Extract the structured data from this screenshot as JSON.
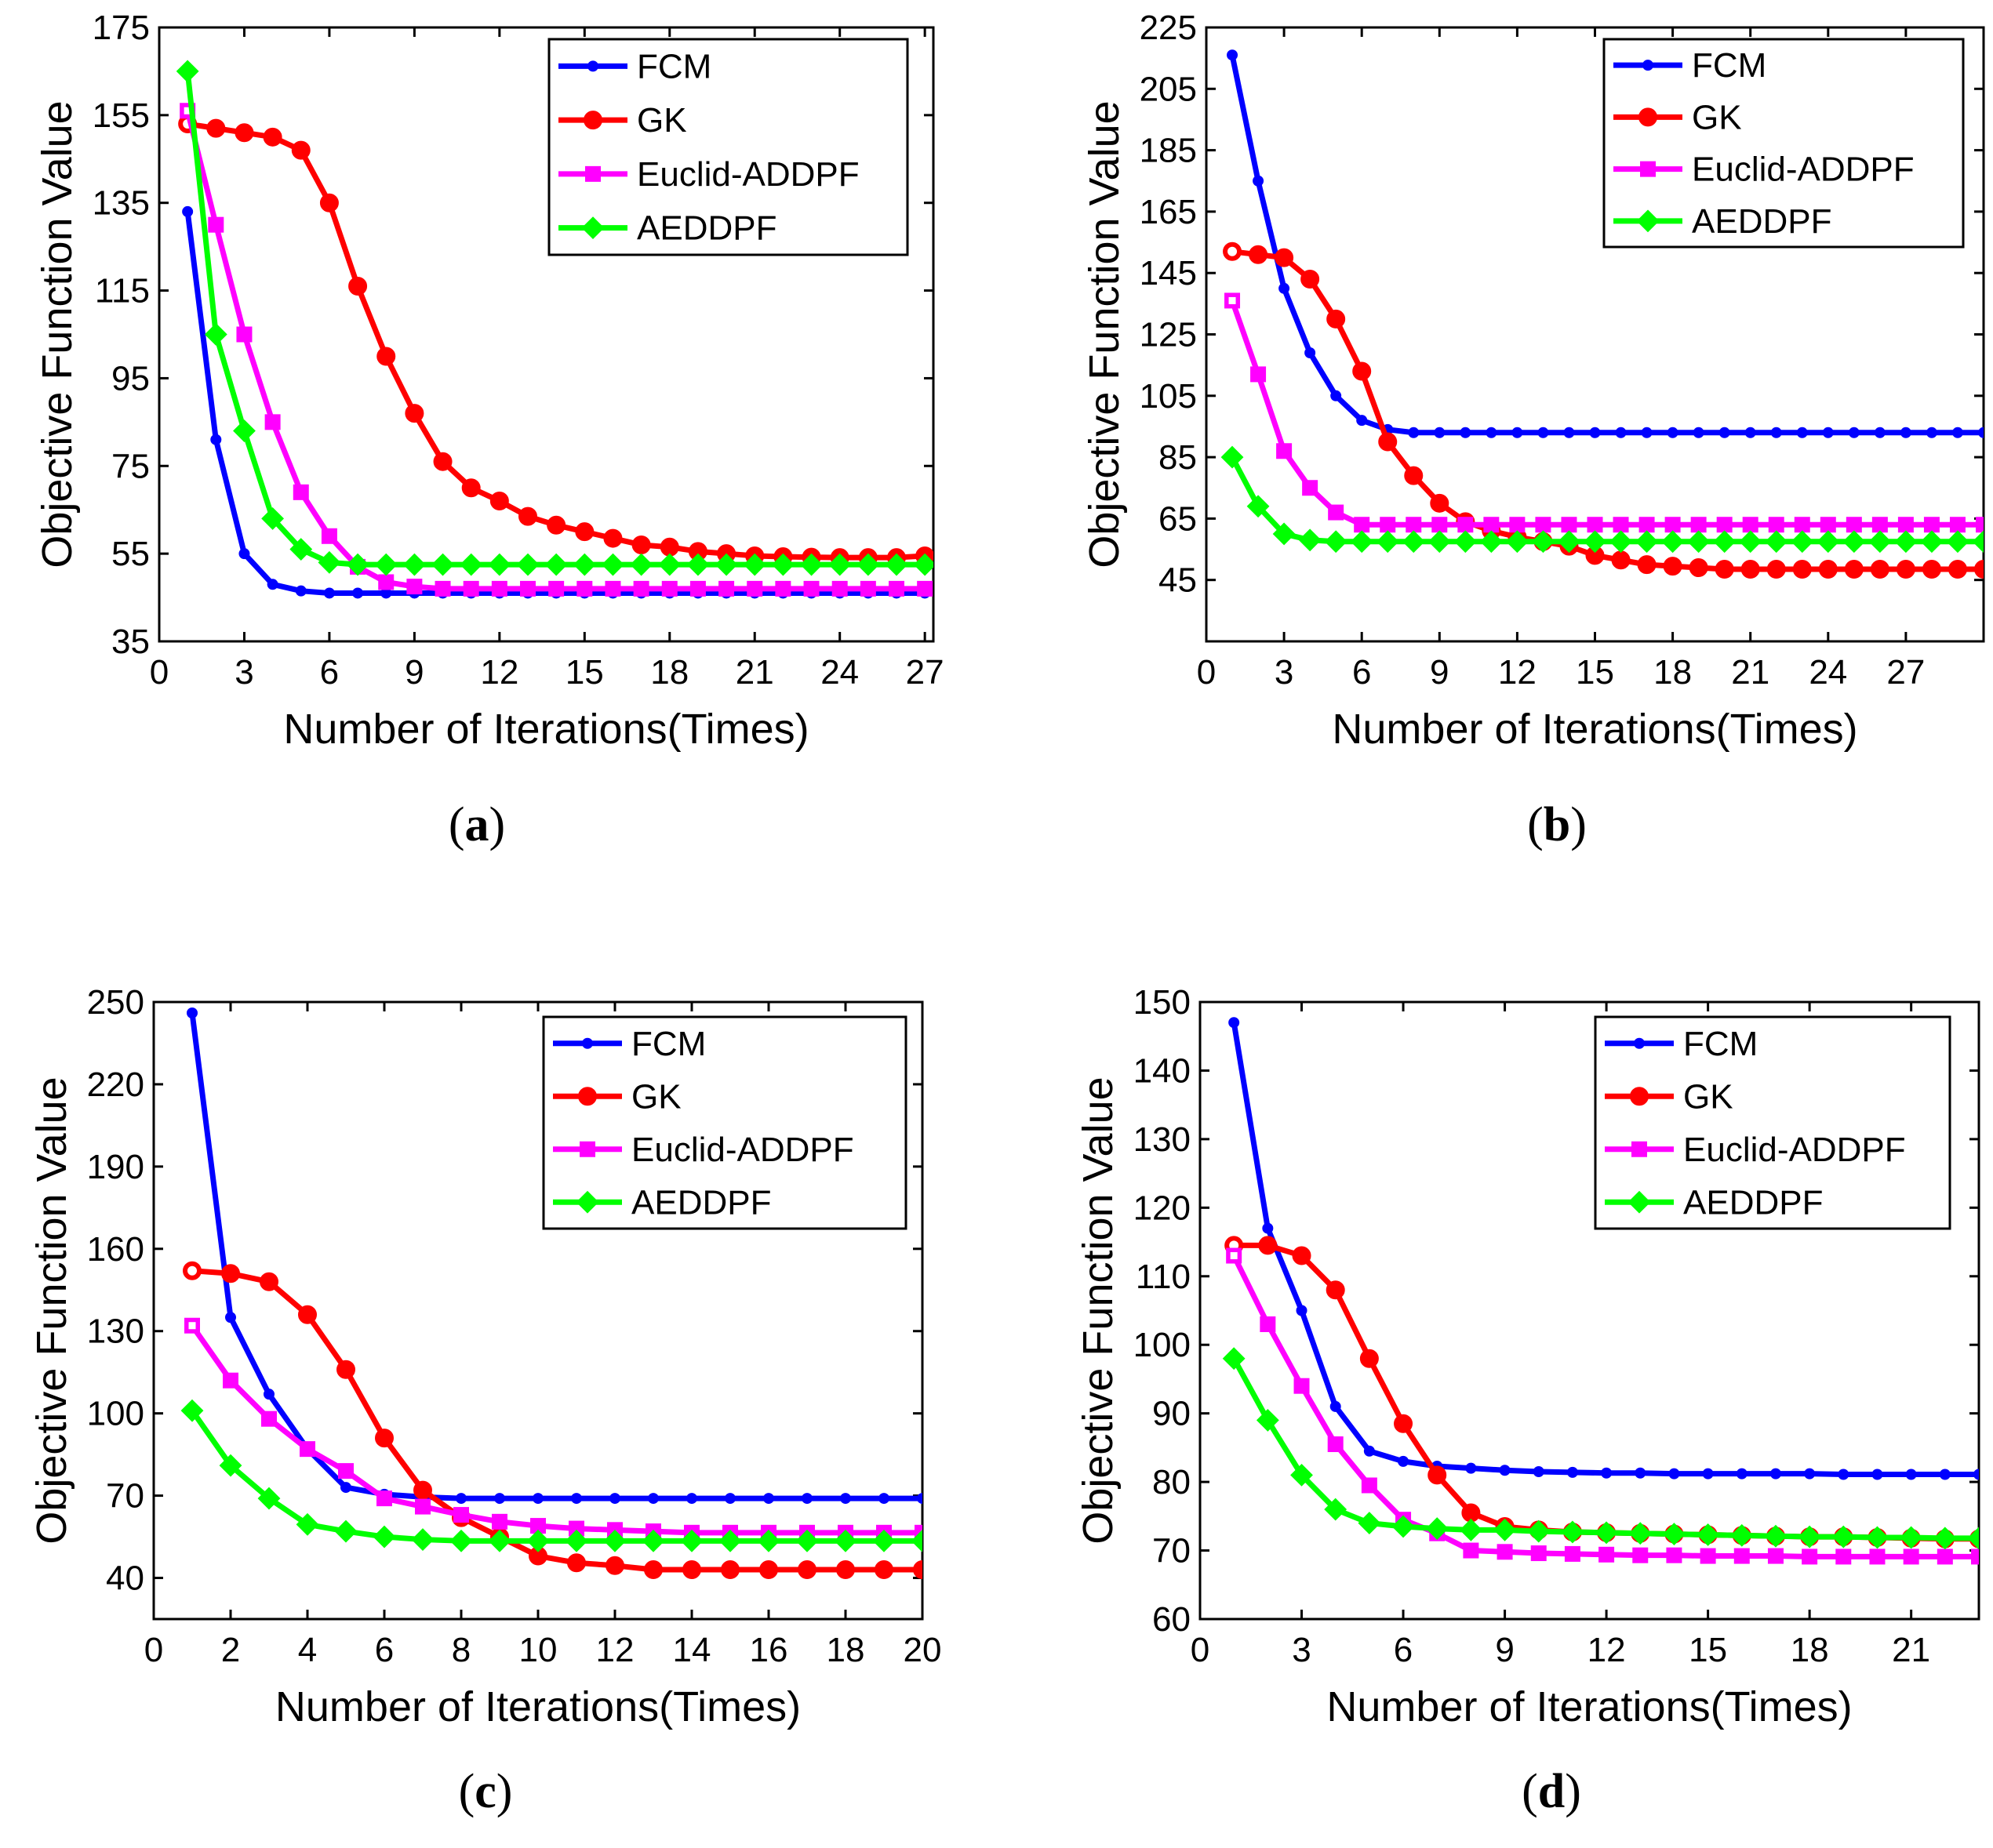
{
  "colors": {
    "FCM": "#0000ff",
    "GK": "#ff0000",
    "Euclid-ADDPF": "#ff00ff",
    "AEDDPF": "#00ff00"
  },
  "markers": {
    "FCM": "small-dot",
    "GK": "circle",
    "Euclid-ADDPF": "square",
    "AEDDPF": "diamond"
  },
  "chart_data": [
    {
      "type": "line",
      "caption": "a",
      "xlabel": "Number of Iterations(Times)",
      "ylabel": "Objective Function Value",
      "xlim": [
        0,
        27.3
      ],
      "ylim": [
        35,
        175
      ],
      "xticks": [
        0,
        3,
        6,
        9,
        12,
        15,
        18,
        21,
        24,
        27
      ],
      "yticks": [
        35,
        55,
        75,
        95,
        115,
        135,
        155,
        175
      ],
      "legend_position": "top-right",
      "series": [
        {
          "name": "FCM",
          "x": [
            1,
            2,
            3,
            4,
            5,
            6,
            7,
            8,
            9,
            10,
            11,
            12,
            13,
            14,
            15,
            16,
            17,
            18,
            19,
            20,
            21,
            22,
            23,
            24,
            25,
            26,
            27
          ],
          "values": [
            133,
            81,
            55,
            48,
            46.5,
            46,
            46,
            46,
            46,
            46,
            46,
            46,
            46,
            46,
            46,
            46,
            46,
            46,
            46,
            46,
            46,
            46,
            46,
            46,
            46,
            46,
            46
          ]
        },
        {
          "name": "GK",
          "x": [
            1,
            2,
            3,
            4,
            5,
            6,
            7,
            8,
            9,
            10,
            11,
            12,
            13,
            14,
            15,
            16,
            17,
            18,
            19,
            20,
            21,
            22,
            23,
            24,
            25,
            26,
            27
          ],
          "values": [
            153,
            152,
            151,
            150,
            147,
            135,
            116,
            100,
            87,
            76,
            70,
            67,
            63.5,
            61.5,
            60,
            58.5,
            57,
            56.5,
            55.5,
            55,
            54.5,
            54.3,
            54.2,
            54.1,
            54.1,
            54.1,
            54.5
          ]
        },
        {
          "name": "Euclid-ADDPF",
          "x": [
            1,
            2,
            3,
            4,
            5,
            6,
            7,
            8,
            9,
            10,
            11,
            12,
            13,
            14,
            15,
            16,
            17,
            18,
            19,
            20,
            21,
            22,
            23,
            24,
            25,
            26,
            27
          ],
          "values": [
            156,
            130,
            105,
            85,
            69,
            59,
            52,
            48.5,
            47.5,
            47,
            47,
            47,
            47,
            47,
            47,
            47,
            47,
            47,
            47,
            47,
            47,
            47,
            47,
            47,
            47,
            47,
            47
          ]
        },
        {
          "name": "AEDDPF",
          "x": [
            1,
            2,
            3,
            4,
            5,
            6,
            7,
            8,
            9,
            10,
            11,
            12,
            13,
            14,
            15,
            16,
            17,
            18,
            19,
            20,
            21,
            22,
            23,
            24,
            25,
            26,
            27
          ],
          "values": [
            165,
            105,
            83,
            63,
            56,
            53,
            52.5,
            52.5,
            52.5,
            52.5,
            52.5,
            52.5,
            52.5,
            52.5,
            52.5,
            52.5,
            52.5,
            52.5,
            52.5,
            52.5,
            52.5,
            52.5,
            52.5,
            52.5,
            52.5,
            52.5,
            52.5
          ]
        }
      ]
    },
    {
      "type": "line",
      "caption": "b",
      "xlabel": "Number of Iterations(Times)",
      "ylabel": "Objective Function Value",
      "xlim": [
        0,
        30
      ],
      "ylim": [
        25,
        225
      ],
      "xticks": [
        0,
        3,
        6,
        9,
        12,
        15,
        18,
        21,
        24,
        27
      ],
      "yticks": [
        45,
        65,
        85,
        105,
        125,
        145,
        165,
        185,
        205,
        225
      ],
      "legend_position": "top-right",
      "series": [
        {
          "name": "FCM",
          "x": [
            1,
            2,
            3,
            4,
            5,
            6,
            7,
            8,
            9,
            10,
            11,
            12,
            13,
            14,
            15,
            16,
            17,
            18,
            19,
            20,
            21,
            22,
            23,
            24,
            25,
            26,
            27,
            28,
            29,
            30
          ],
          "values": [
            216,
            175,
            140,
            119,
            105,
            97,
            94,
            93,
            93,
            93,
            93,
            93,
            93,
            93,
            93,
            93,
            93,
            93,
            93,
            93,
            93,
            93,
            93,
            93,
            93,
            93,
            93,
            93,
            93,
            93
          ]
        },
        {
          "name": "GK",
          "x": [
            1,
            2,
            3,
            4,
            5,
            6,
            7,
            8,
            9,
            10,
            11,
            12,
            13,
            14,
            15,
            16,
            17,
            18,
            19,
            20,
            21,
            22,
            23,
            24,
            25,
            26,
            27,
            28,
            29,
            30
          ],
          "values": [
            152,
            151,
            150,
            143,
            130,
            113,
            90,
            79,
            70,
            64,
            61,
            59,
            57.5,
            56,
            53,
            51.5,
            50,
            49.5,
            49,
            48.5,
            48.5,
            48.5,
            48.5,
            48.5,
            48.5,
            48.5,
            48.5,
            48.5,
            48.5,
            48.5
          ]
        },
        {
          "name": "Euclid-ADDPF",
          "x": [
            1,
            2,
            3,
            4,
            5,
            6,
            7,
            8,
            9,
            10,
            11,
            12,
            13,
            14,
            15,
            16,
            17,
            18,
            19,
            20,
            21,
            22,
            23,
            24,
            25,
            26,
            27,
            28,
            29,
            30
          ],
          "values": [
            136,
            112,
            87,
            75,
            67,
            63,
            63,
            63,
            63,
            63,
            63,
            63,
            63,
            63,
            63,
            63,
            63,
            63,
            63,
            63,
            63,
            63,
            63,
            63,
            63,
            63,
            63,
            63,
            63,
            63
          ]
        },
        {
          "name": "AEDDPF",
          "x": [
            1,
            2,
            3,
            4,
            5,
            6,
            7,
            8,
            9,
            10,
            11,
            12,
            13,
            14,
            15,
            16,
            17,
            18,
            19,
            20,
            21,
            22,
            23,
            24,
            25,
            26,
            27,
            28,
            29,
            30
          ],
          "values": [
            85,
            69,
            60,
            58,
            57.5,
            57.5,
            57.5,
            57.5,
            57.5,
            57.5,
            57.5,
            57.5,
            57.5,
            57.5,
            57.5,
            57.5,
            57.5,
            57.5,
            57.5,
            57.5,
            57.5,
            57.5,
            57.5,
            57.5,
            57.5,
            57.5,
            57.5,
            57.5,
            57.5,
            57.5
          ]
        }
      ]
    },
    {
      "type": "line",
      "caption": "c",
      "xlabel": "Number of Iterations(Times)",
      "ylabel": "Objective Function Value",
      "xlim": [
        0,
        20
      ],
      "ylim": [
        25,
        250
      ],
      "xticks": [
        0,
        2,
        4,
        6,
        8,
        10,
        12,
        14,
        16,
        18,
        20
      ],
      "yticks": [
        40,
        70,
        100,
        130,
        160,
        190,
        220,
        250
      ],
      "legend_position": "top-right",
      "series": [
        {
          "name": "FCM",
          "x": [
            1,
            2,
            3,
            4,
            5,
            6,
            7,
            8,
            9,
            10,
            11,
            12,
            13,
            14,
            15,
            16,
            17,
            18,
            19,
            20
          ],
          "values": [
            246,
            135,
            107,
            87,
            73,
            70.5,
            69.5,
            69,
            69,
            69,
            69,
            69,
            69,
            69,
            69,
            69,
            69,
            69,
            69,
            69
          ]
        },
        {
          "name": "GK",
          "x": [
            1,
            2,
            3,
            4,
            5,
            6,
            7,
            8,
            9,
            10,
            11,
            12,
            13,
            14,
            15,
            16,
            17,
            18,
            19,
            20
          ],
          "values": [
            152,
            151,
            148,
            136,
            116,
            91,
            72,
            62,
            55,
            48,
            45.5,
            44.5,
            43,
            43,
            43,
            43,
            43,
            43,
            43,
            43
          ]
        },
        {
          "name": "Euclid-ADDPF",
          "x": [
            1,
            2,
            3,
            4,
            5,
            6,
            7,
            8,
            9,
            10,
            11,
            12,
            13,
            14,
            15,
            16,
            17,
            18,
            19,
            20
          ],
          "values": [
            132,
            112,
            98,
            87,
            79,
            69,
            66,
            63,
            60.5,
            59,
            58,
            57.5,
            57,
            56.5,
            56.5,
            56.5,
            56.5,
            56.5,
            56.5,
            56.5
          ]
        },
        {
          "name": "AEDDPF",
          "x": [
            1,
            2,
            3,
            4,
            5,
            6,
            7,
            8,
            9,
            10,
            11,
            12,
            13,
            14,
            15,
            16,
            17,
            18,
            19,
            20
          ],
          "values": [
            101,
            81,
            69,
            59.5,
            57,
            55,
            54,
            53.5,
            53.5,
            53.5,
            53.5,
            53.5,
            53.5,
            53.5,
            53.5,
            53.5,
            53.5,
            53.5,
            53.5,
            53.5
          ]
        }
      ]
    },
    {
      "type": "line",
      "caption": "d",
      "xlabel": "Number of Iterations(Times)",
      "ylabel": "Objective Function Value",
      "xlim": [
        0,
        23
      ],
      "ylim": [
        60,
        150
      ],
      "xticks": [
        0,
        3,
        6,
        9,
        12,
        15,
        18,
        21
      ],
      "yticks": [
        60,
        70,
        80,
        90,
        100,
        110,
        120,
        130,
        140,
        150
      ],
      "legend_position": "top-right",
      "series": [
        {
          "name": "FCM",
          "x": [
            1,
            2,
            3,
            4,
            5,
            6,
            7,
            8,
            9,
            10,
            11,
            12,
            13,
            14,
            15,
            16,
            17,
            18,
            19,
            20,
            21,
            22,
            23
          ],
          "values": [
            147,
            117,
            105,
            91,
            84.5,
            83,
            82.3,
            82,
            81.7,
            81.5,
            81.4,
            81.3,
            81.3,
            81.2,
            81.2,
            81.2,
            81.2,
            81.2,
            81.1,
            81.1,
            81.1,
            81.1,
            81.1
          ]
        },
        {
          "name": "GK",
          "x": [
            1,
            2,
            3,
            4,
            5,
            6,
            7,
            8,
            9,
            10,
            11,
            12,
            13,
            14,
            15,
            16,
            17,
            18,
            19,
            20,
            21,
            22,
            23
          ],
          "values": [
            114.5,
            114.5,
            113,
            108,
            98,
            88.5,
            81,
            75.5,
            73.5,
            73,
            72.7,
            72.6,
            72.5,
            72.4,
            72.3,
            72.2,
            72.1,
            72,
            72,
            71.9,
            71.8,
            71.7,
            71.7
          ]
        },
        {
          "name": "Euclid-ADDPF",
          "x": [
            1,
            2,
            3,
            4,
            5,
            6,
            7,
            8,
            9,
            10,
            11,
            12,
            13,
            14,
            15,
            16,
            17,
            18,
            19,
            20,
            21,
            22,
            23
          ],
          "values": [
            113,
            103,
            94,
            85.5,
            79.5,
            74.5,
            72.5,
            70,
            69.8,
            69.6,
            69.5,
            69.4,
            69.3,
            69.3,
            69.2,
            69.2,
            69.2,
            69.1,
            69.1,
            69.1,
            69.1,
            69.1,
            69.1
          ]
        },
        {
          "name": "AEDDPF",
          "x": [
            1,
            2,
            3,
            4,
            5,
            6,
            7,
            8,
            9,
            10,
            11,
            12,
            13,
            14,
            15,
            16,
            17,
            18,
            19,
            20,
            21,
            22,
            23
          ],
          "values": [
            98,
            89,
            81,
            76,
            74,
            73.5,
            73.2,
            73,
            73,
            72.8,
            72.7,
            72.6,
            72.5,
            72.4,
            72.3,
            72.2,
            72.1,
            72,
            72,
            71.9,
            71.9,
            71.8,
            71.8
          ]
        }
      ]
    }
  ]
}
